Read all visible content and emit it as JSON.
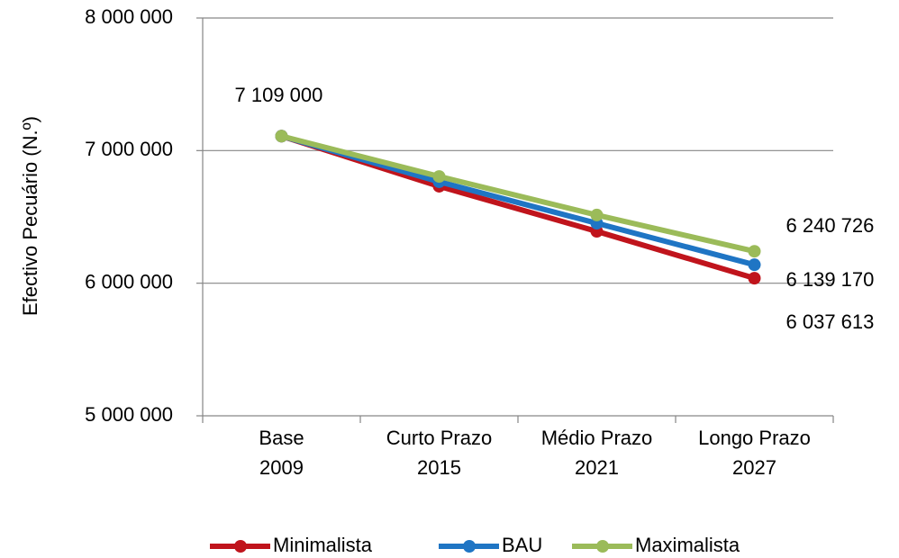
{
  "chart_data": {
    "type": "line",
    "y_label": "Efectivo Pecuário (N.º)",
    "categories": [
      "Base\n2009",
      "Curto Prazo\n2015",
      "Médio Prazo\n2021",
      "Longo Prazo\n2027"
    ],
    "series": [
      {
        "name": "Minimalista",
        "color": "#c0141c",
        "values": [
          7109000,
          6731000,
          6391000,
          6037613
        ],
        "value_labels": [
          null,
          null,
          null,
          "6 037 613"
        ]
      },
      {
        "name": "BAU",
        "color": "#1f75c4",
        "values": [
          7109000,
          6765000,
          6452000,
          6139170
        ],
        "value_labels": [
          null,
          null,
          null,
          "6 139 170"
        ]
      },
      {
        "name": "Maximalista",
        "color": "#9bbb59",
        "values": [
          7109000,
          6805000,
          6514000,
          6240726
        ],
        "value_labels": [
          "7 109 000",
          null,
          null,
          "6 240 726"
        ]
      }
    ],
    "ylim": [
      5000000,
      8000000
    ],
    "yticks": [
      {
        "value": 5000000,
        "label": "5 000 000"
      },
      {
        "value": 6000000,
        "label": "6 000 000"
      },
      {
        "value": 7000000,
        "label": "7 000 000"
      },
      {
        "value": 8000000,
        "label": "8 000 000"
      }
    ],
    "grid": true,
    "legend": "bottom"
  }
}
